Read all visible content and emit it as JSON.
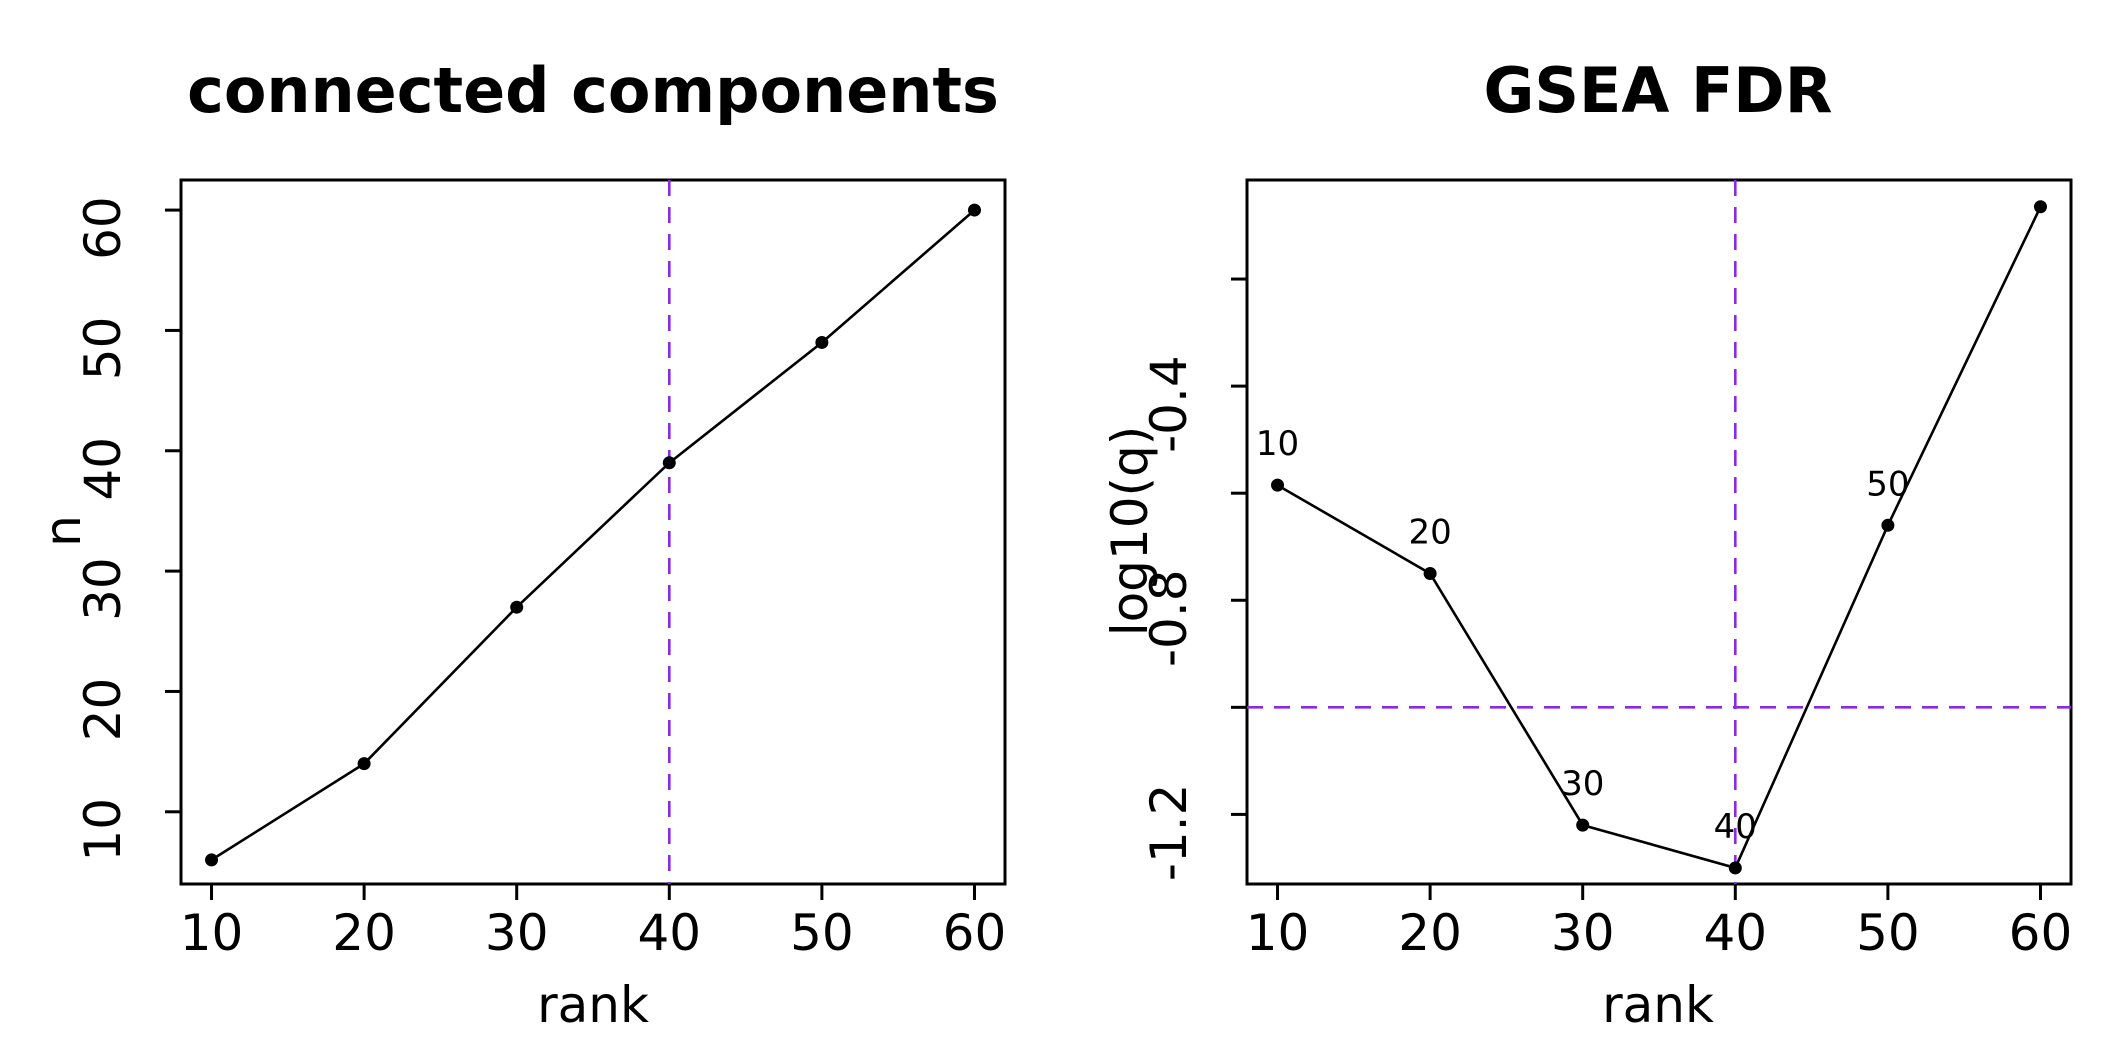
{
  "colors": {
    "reference_line": "#8a2be2",
    "series": "#000000",
    "background": "#ffffff"
  },
  "chart_data": [
    {
      "type": "line",
      "title": "connected components",
      "xlabel": "rank",
      "ylabel": "n",
      "xlim": [
        8,
        62
      ],
      "ylim": [
        4,
        62.5
      ],
      "xticks": [
        10,
        20,
        30,
        40,
        50,
        60
      ],
      "yticks": [
        10,
        20,
        30,
        40,
        50,
        60
      ],
      "x": [
        10,
        20,
        30,
        40,
        50,
        60
      ],
      "y": [
        6,
        14,
        27,
        39,
        49,
        60
      ],
      "point_labels": [],
      "vline": 40,
      "hline": null,
      "grid": false,
      "legend": "none"
    },
    {
      "type": "line",
      "title": "GSEA FDR",
      "xlabel": "rank",
      "ylabel": "log10(q)",
      "xlim": [
        8,
        62
      ],
      "ylim": [
        -1.33,
        -0.015
      ],
      "xticks": [
        10,
        20,
        30,
        40,
        50,
        60
      ],
      "yticks": [
        -1.2,
        -1.0,
        -0.8,
        -0.6,
        -0.4,
        -0.2
      ],
      "ytick_labels": [
        "-1.2",
        "",
        "-0.8",
        "",
        "-0.4",
        ""
      ],
      "x": [
        10,
        20,
        30,
        40,
        50,
        60
      ],
      "y": [
        -0.585,
        -0.75,
        -1.22,
        -1.3,
        -0.66,
        -0.065
      ],
      "point_labels": [
        "10",
        "20",
        "30",
        "40",
        "50",
        ""
      ],
      "vline": 40,
      "hline": -1.0,
      "grid": false,
      "legend": "none"
    }
  ]
}
